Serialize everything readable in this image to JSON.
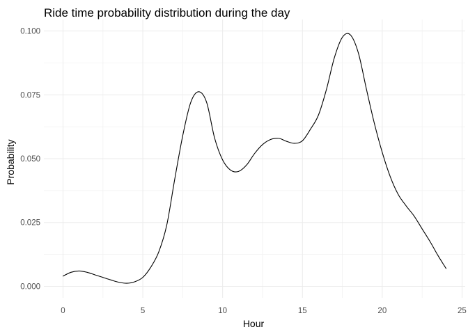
{
  "chart_data": {
    "type": "line",
    "title": "Ride time probability distribution during the day",
    "xlabel": "Hour",
    "ylabel": "Probability",
    "xlim": [
      -1.2,
      25.2
    ],
    "ylim": [
      -0.0045,
      0.1045
    ],
    "x_ticks": [
      0,
      5,
      10,
      15,
      20,
      25
    ],
    "x_tick_labels": [
      "0",
      "5",
      "10",
      "15",
      "20",
      "25"
    ],
    "x_minor_ticks": [
      2.5,
      7.5,
      12.5,
      17.5,
      22.5
    ],
    "y_ticks": [
      0,
      0.025,
      0.05,
      0.075,
      0.1
    ],
    "y_tick_labels": [
      "0.000",
      "0.025",
      "0.050",
      "0.075",
      "0.100"
    ],
    "y_minor_ticks": [
      0.0125,
      0.0375,
      0.0625,
      0.0875
    ],
    "grid": true,
    "legend": "none",
    "line_color": "#000000",
    "x": [
      0,
      0.5,
      1,
      1.5,
      2,
      2.5,
      3,
      3.5,
      4,
      4.5,
      5,
      5.5,
      6,
      6.5,
      7,
      7.5,
      8,
      8.5,
      9,
      9.5,
      10,
      10.5,
      11,
      11.5,
      12,
      12.5,
      13,
      13.5,
      14,
      14.5,
      15,
      15.5,
      16,
      16.5,
      17,
      17.5,
      18,
      18.5,
      19,
      19.5,
      20,
      20.5,
      21,
      21.5,
      22,
      22.5,
      23,
      23.5,
      24
    ],
    "y": [
      0.004,
      0.0055,
      0.006,
      0.0055,
      0.0045,
      0.0035,
      0.0025,
      0.0016,
      0.0012,
      0.0018,
      0.0035,
      0.0075,
      0.0135,
      0.024,
      0.042,
      0.059,
      0.072,
      0.0762,
      0.072,
      0.058,
      0.0495,
      0.0455,
      0.045,
      0.0475,
      0.052,
      0.0555,
      0.0575,
      0.058,
      0.0568,
      0.056,
      0.057,
      0.0615,
      0.067,
      0.077,
      0.0895,
      0.0975,
      0.0985,
      0.0915,
      0.0775,
      0.064,
      0.0525,
      0.043,
      0.036,
      0.0315,
      0.0275,
      0.0225,
      0.0175,
      0.012,
      0.007
    ]
  }
}
